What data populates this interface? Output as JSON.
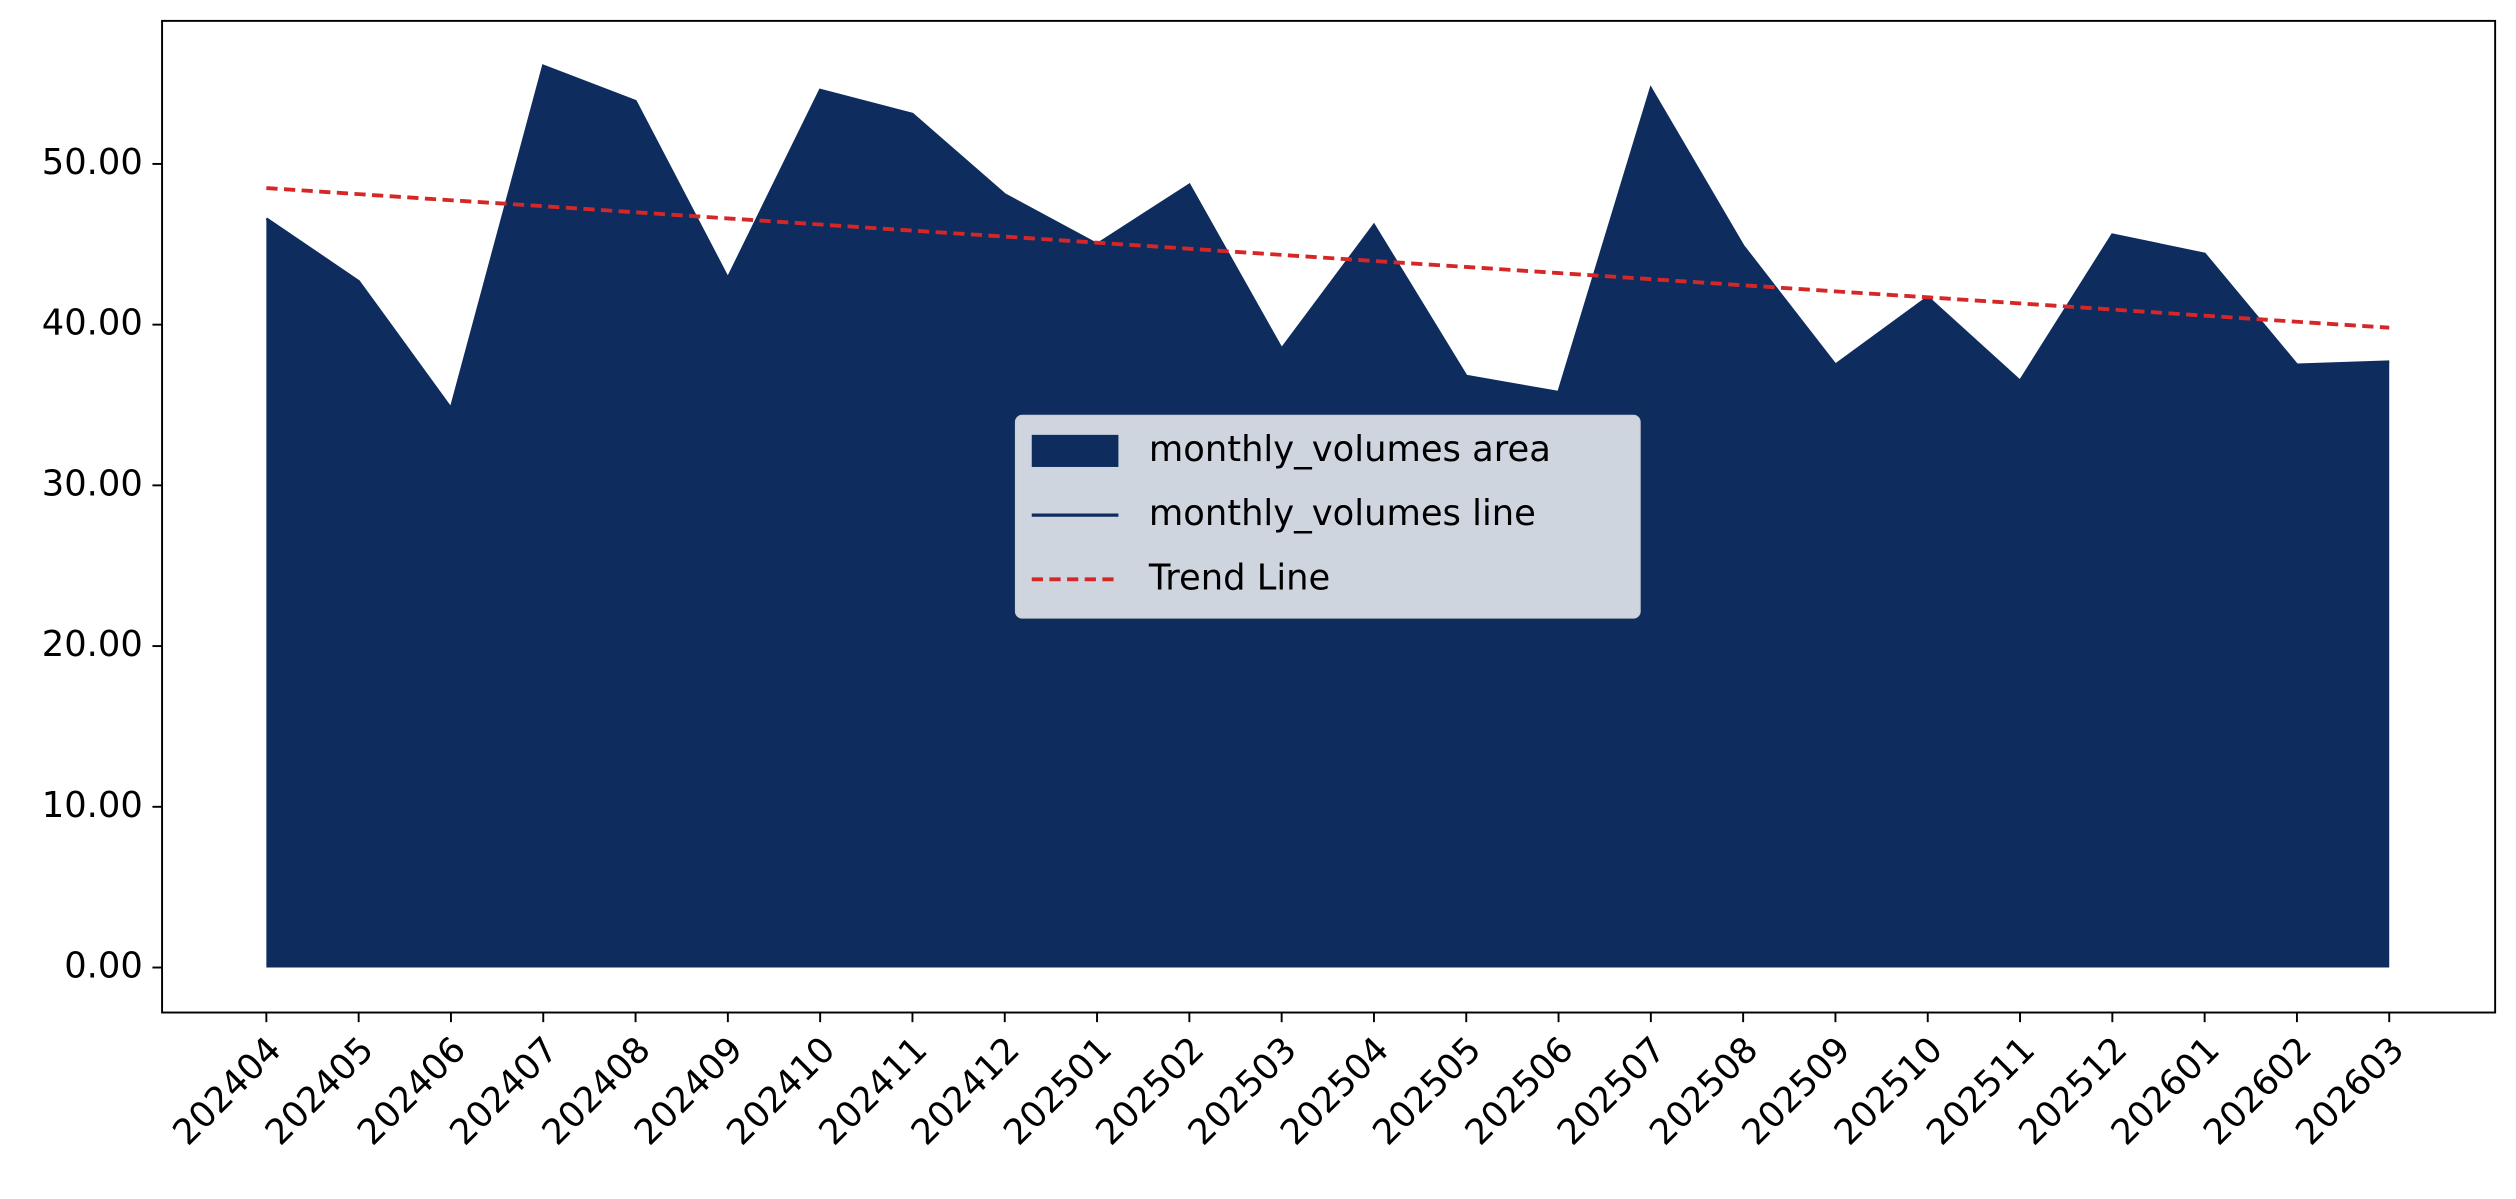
{
  "chart_data": {
    "type": "area",
    "categories": [
      "202404",
      "202405",
      "202406",
      "202407",
      "202408",
      "202409",
      "202410",
      "202411",
      "202412",
      "202501",
      "202502",
      "202503",
      "202504",
      "202505",
      "202506",
      "202507",
      "202508",
      "202509",
      "202510",
      "202511",
      "202512",
      "202601",
      "202602",
      "202603"
    ],
    "series": [
      {
        "name": "monthly_volumes area",
        "kind": "area",
        "color": "#0e2d5e",
        "values": [
          46.6,
          42.7,
          34.8,
          56.1,
          53.9,
          42.9,
          54.6,
          53.1,
          48.1,
          45.0,
          48.7,
          38.5,
          46.2,
          36.8,
          35.8,
          54.7,
          44.9,
          37.5,
          41.7,
          36.5,
          45.6,
          44.4,
          37.5,
          37.7
        ]
      },
      {
        "name": "monthly_volumes line",
        "kind": "line",
        "color": "#0e2d5e",
        "values": [
          46.6,
          42.7,
          34.8,
          56.1,
          53.9,
          42.9,
          54.6,
          53.1,
          48.1,
          45.0,
          48.7,
          38.5,
          46.2,
          36.8,
          35.8,
          54.7,
          44.9,
          37.5,
          41.7,
          36.5,
          45.6,
          44.4,
          37.5,
          37.7
        ]
      },
      {
        "name": "Trend Line",
        "kind": "line",
        "dashed": true,
        "color": "#d62728",
        "values": [
          48.5,
          48.12,
          47.74,
          47.37,
          46.99,
          46.61,
          46.23,
          45.85,
          45.48,
          45.1,
          44.72,
          44.34,
          43.96,
          43.59,
          43.21,
          42.83,
          42.45,
          42.07,
          41.7,
          41.32,
          40.94,
          40.56,
          40.18,
          39.81
        ]
      }
    ],
    "ylim": [
      -2.8,
      58.9
    ],
    "yticks": [
      {
        "value": 0,
        "label": "0.00"
      },
      {
        "value": 10,
        "label": "10.00"
      },
      {
        "value": 20,
        "label": "20.00"
      },
      {
        "value": 30,
        "label": "30.00"
      },
      {
        "value": 40,
        "label": "40.00"
      },
      {
        "value": 50,
        "label": "50.00"
      }
    ],
    "legend": "center"
  }
}
